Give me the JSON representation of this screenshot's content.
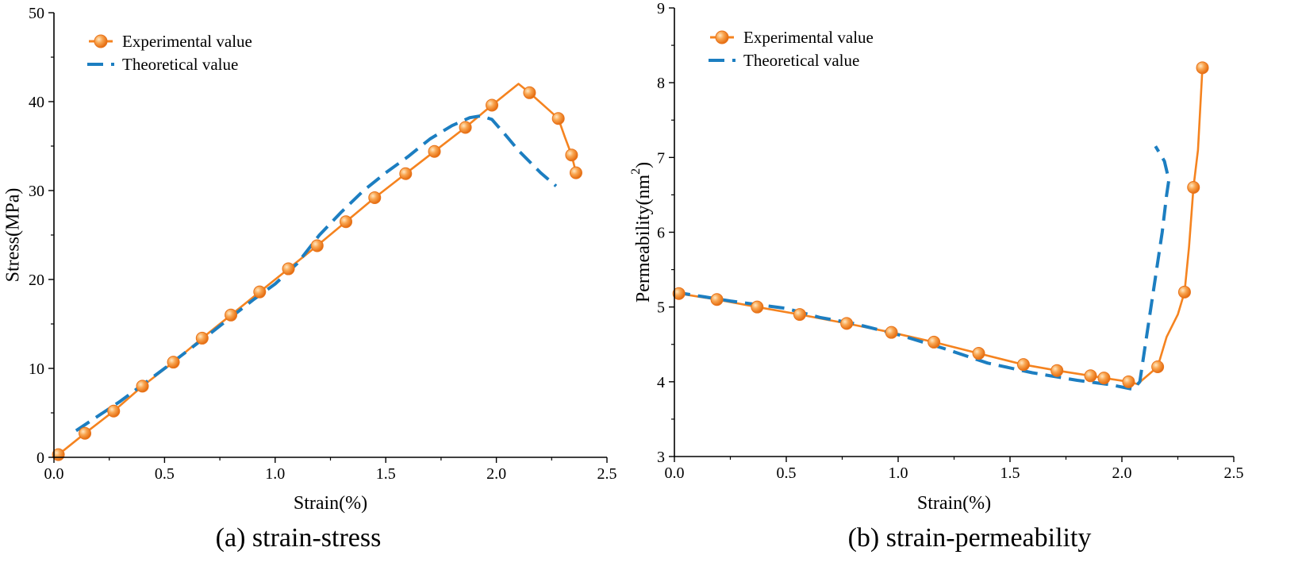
{
  "chart_data": [
    {
      "type": "line",
      "caption": "(a) strain-stress",
      "xlabel": "Strain(%)",
      "ylabel": "Stress(MPa)",
      "xlim": [
        0.0,
        2.5
      ],
      "ylim": [
        0,
        50
      ],
      "xticks": [
        "0.0",
        "0.5",
        "1.0",
        "1.5",
        "2.0",
        "2.5"
      ],
      "yticks": [
        "0",
        "10",
        "20",
        "30",
        "40",
        "50"
      ],
      "legend": {
        "position": "top-left",
        "entries": [
          "Experimental value",
          "Theoretical value"
        ]
      },
      "series": [
        {
          "name": "Experimental value",
          "style": "solid-with-markers",
          "color": "#F5831F",
          "x": [
            0.02,
            0.14,
            0.27,
            0.4,
            0.54,
            0.67,
            0.8,
            0.93,
            1.06,
            1.19,
            1.32,
            1.45,
            1.59,
            1.72,
            1.86,
            1.98,
            2.1,
            2.15,
            2.24,
            2.28,
            2.31,
            2.34,
            2.36
          ],
          "y": [
            0.3,
            2.7,
            5.2,
            8.0,
            10.7,
            13.4,
            16.0,
            18.6,
            21.2,
            23.8,
            26.5,
            29.2,
            31.9,
            34.4,
            37.1,
            39.6,
            42.0,
            41.0,
            39.0,
            38.1,
            36.0,
            34.0,
            32.0
          ],
          "markers": [
            true,
            true,
            true,
            true,
            true,
            true,
            true,
            true,
            true,
            true,
            true,
            true,
            true,
            true,
            true,
            true,
            false,
            true,
            false,
            true,
            false,
            true,
            true
          ]
        },
        {
          "name": "Theoretical value",
          "style": "dashed",
          "color": "#1C7EC1",
          "x": [
            0.1,
            0.3,
            0.5,
            0.7,
            0.9,
            1.0,
            1.1,
            1.2,
            1.3,
            1.4,
            1.5,
            1.6,
            1.7,
            1.8,
            1.88,
            1.93,
            1.98,
            2.05,
            2.1,
            2.2,
            2.27
          ],
          "y": [
            3.0,
            6.3,
            10.0,
            13.8,
            17.7,
            19.5,
            21.8,
            25.0,
            27.6,
            30.0,
            32.0,
            33.8,
            35.8,
            37.3,
            38.2,
            38.4,
            38.0,
            36.0,
            34.5,
            32.0,
            30.5
          ]
        }
      ]
    },
    {
      "type": "line",
      "caption": "(b) strain-permeability",
      "xlabel": "Strain(%)",
      "ylabel": "Permeability(nm",
      "ylabel_superscript": "2",
      "ylabel_suffix": ")",
      "xlim": [
        0.0,
        2.5
      ],
      "ylim": [
        3,
        9
      ],
      "xticks": [
        "0.0",
        "0.5",
        "1.0",
        "1.5",
        "2.0",
        "2.5"
      ],
      "yticks": [
        "3",
        "4",
        "5",
        "6",
        "7",
        "8",
        "9"
      ],
      "legend": {
        "position": "top-left",
        "entries": [
          "Experimental value",
          "Theoretical value"
        ]
      },
      "series": [
        {
          "name": "Experimental value",
          "style": "solid-with-markers",
          "color": "#F5831F",
          "x": [
            0.02,
            0.19,
            0.37,
            0.56,
            0.77,
            0.97,
            1.16,
            1.36,
            1.56,
            1.71,
            1.86,
            1.92,
            2.03,
            2.07,
            2.16,
            2.2,
            2.25,
            2.28,
            2.3,
            2.32,
            2.34,
            2.36
          ],
          "y": [
            5.18,
            5.1,
            5.0,
            4.9,
            4.78,
            4.66,
            4.53,
            4.38,
            4.23,
            4.15,
            4.08,
            4.05,
            4.0,
            3.97,
            4.2,
            4.6,
            4.9,
            5.2,
            5.8,
            6.6,
            7.1,
            8.2
          ],
          "markers": [
            true,
            true,
            true,
            true,
            true,
            true,
            true,
            true,
            true,
            true,
            true,
            true,
            true,
            false,
            true,
            false,
            false,
            true,
            false,
            true,
            false,
            true
          ]
        },
        {
          "name": "Theoretical value",
          "style": "dashed",
          "color": "#1C7EC1",
          "x": [
            0.0,
            0.25,
            0.5,
            0.65,
            0.8,
            1.0,
            1.2,
            1.4,
            1.6,
            1.8,
            1.95,
            2.05,
            2.08,
            2.1,
            2.14,
            2.18,
            2.2,
            2.21,
            2.19,
            2.15
          ],
          "y": [
            5.2,
            5.08,
            4.98,
            4.86,
            4.78,
            4.63,
            4.45,
            4.25,
            4.12,
            4.02,
            3.96,
            3.9,
            4.0,
            4.4,
            5.2,
            6.0,
            6.5,
            6.7,
            6.95,
            7.15
          ]
        }
      ]
    }
  ]
}
